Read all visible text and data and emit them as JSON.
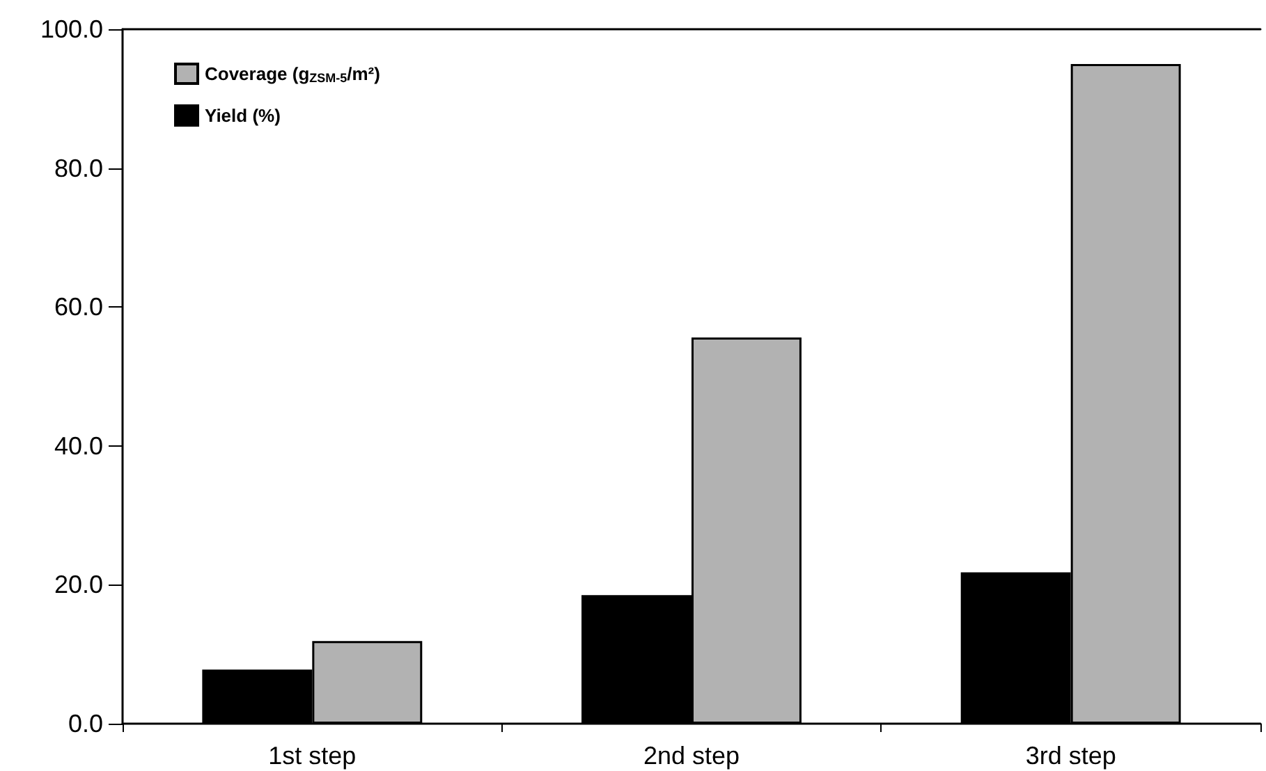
{
  "chart_data": {
    "type": "bar",
    "categories": [
      "1st step",
      "2nd step",
      "3rd step"
    ],
    "series": [
      {
        "name": "Yield (%)",
        "color": "#000000",
        "values": [
          7.8,
          18.5,
          21.8
        ]
      },
      {
        "name": "Coverage (g$_{ZSM-5}$/m²)",
        "color": "#b2b2b2",
        "values": [
          11.9,
          55.6,
          95.0
        ]
      }
    ],
    "ylim": [
      0,
      100
    ],
    "yticks": [
      {
        "value": 0,
        "label": "0.0"
      },
      {
        "value": 20,
        "label": "20.0"
      },
      {
        "value": 40,
        "label": "40.0"
      },
      {
        "value": 60,
        "label": "60.0"
      },
      {
        "value": 80,
        "label": "80.0"
      },
      {
        "value": 100,
        "label": "100.0"
      }
    ],
    "grid": false,
    "legend": "top left"
  }
}
